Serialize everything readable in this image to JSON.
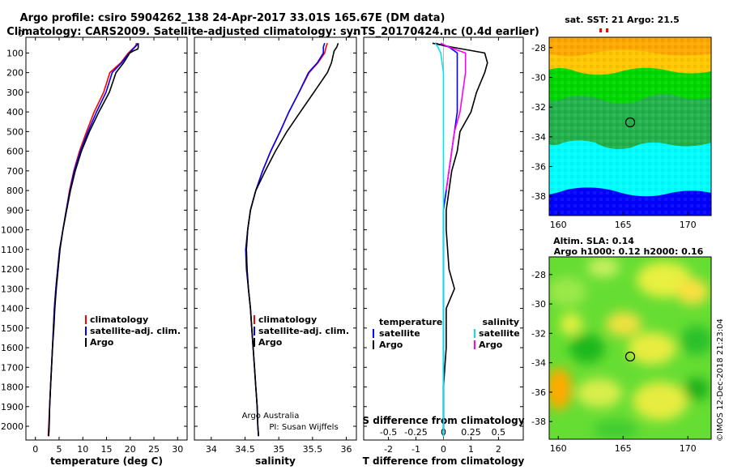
{
  "title_line1": "Argo profile: csiro 5904262_138 24-Apr-2017 33.01S 165.67E (DM data)",
  "title_line2": "Climatology: CARS2009. Satellite-adjusted climatology: synTS_20170424.nc (0.4d earlier)",
  "depth_ticks": [
    "0",
    "100",
    "200",
    "300",
    "400",
    "500",
    "600",
    "700",
    "800",
    "900",
    "1000",
    "1100",
    "1200",
    "1300",
    "1400",
    "1500",
    "1600",
    "1700",
    "1800",
    "1900",
    "2000"
  ],
  "colors": {
    "climatology": "#ff0000",
    "satellite": "#0000ff",
    "argo": "#000000",
    "cyan": "#00e6e6",
    "magenta": "#ff00ff"
  },
  "panels": [
    {
      "id": "temperature",
      "xlabel": "temperature (deg C)",
      "xticks": [
        "0",
        "5",
        "10",
        "15",
        "20",
        "25",
        "30"
      ],
      "xlim": [
        -2,
        32
      ],
      "legend": [
        "climatology",
        "satellite-adj. clim.",
        "Argo"
      ],
      "series": [
        {
          "name": "climatology",
          "color": "#ff0000",
          "points": [
            [
              21.3,
              50
            ],
            [
              21.2,
              60
            ],
            [
              20.9,
              70
            ],
            [
              19.6,
              100
            ],
            [
              18.0,
              150
            ],
            [
              15.7,
              200
            ],
            [
              14.4,
              300
            ],
            [
              12.4,
              400
            ],
            [
              10.8,
              500
            ],
            [
              9.3,
              600
            ],
            [
              8.1,
              700
            ],
            [
              7.2,
              800
            ],
            [
              6.5,
              900
            ],
            [
              5.8,
              1000
            ],
            [
              5.1,
              1100
            ],
            [
              4.7,
              1200
            ],
            [
              4.3,
              1300
            ],
            [
              4.0,
              1400
            ],
            [
              3.8,
              1500
            ],
            [
              3.6,
              1600
            ],
            [
              3.4,
              1700
            ],
            [
              3.2,
              1800
            ],
            [
              3.0,
              1900
            ],
            [
              2.8,
              2000
            ],
            [
              2.7,
              2050
            ]
          ]
        },
        {
          "name": "satellite-adj. clim.",
          "color": "#0000ff",
          "points": [
            [
              21.5,
              50
            ],
            [
              21.4,
              60
            ],
            [
              21.0,
              70
            ],
            [
              19.8,
              100
            ],
            [
              18.2,
              150
            ],
            [
              16.2,
              200
            ],
            [
              14.9,
              300
            ],
            [
              12.9,
              400
            ],
            [
              11.1,
              500
            ],
            [
              9.5,
              600
            ],
            [
              8.2,
              700
            ],
            [
              7.3,
              800
            ],
            [
              6.5,
              900
            ],
            [
              5.8,
              1000
            ],
            [
              5.1,
              1100
            ],
            [
              4.7,
              1200
            ],
            [
              4.3,
              1300
            ],
            [
              4.0,
              1400
            ],
            [
              3.8,
              1500
            ],
            [
              3.6,
              1600
            ],
            [
              3.4,
              1700
            ],
            [
              3.2,
              1800
            ],
            [
              3.0,
              1900
            ],
            [
              2.9,
              2000
            ],
            [
              2.8,
              2050
            ]
          ]
        },
        {
          "name": "Argo",
          "color": "#000000",
          "points": [
            [
              21.7,
              50
            ],
            [
              21.7,
              70
            ],
            [
              21.6,
              80
            ],
            [
              20.6,
              90
            ],
            [
              19.9,
              100
            ],
            [
              18.6,
              150
            ],
            [
              17.0,
              200
            ],
            [
              15.6,
              300
            ],
            [
              13.4,
              400
            ],
            [
              11.4,
              500
            ],
            [
              9.7,
              600
            ],
            [
              8.4,
              700
            ],
            [
              7.4,
              800
            ],
            [
              6.6,
              900
            ],
            [
              5.8,
              1000
            ],
            [
              5.2,
              1100
            ],
            [
              4.8,
              1200
            ],
            [
              4.4,
              1300
            ],
            [
              4.1,
              1400
            ],
            [
              3.9,
              1500
            ],
            [
              3.6,
              1600
            ],
            [
              3.4,
              1700
            ],
            [
              3.2,
              1800
            ],
            [
              3.0,
              1900
            ],
            [
              2.9,
              2000
            ],
            [
              2.8,
              2050
            ]
          ]
        }
      ]
    },
    {
      "id": "salinity",
      "xlabel": "salinity",
      "xticks": [
        "34",
        "34.5",
        "35",
        "35.5",
        "36"
      ],
      "xlim": [
        33.75,
        36.15
      ],
      "legend": [
        "climatology",
        "satellite-adj. clim.",
        "Argo"
      ],
      "series": [
        {
          "name": "climatology",
          "color": "#ff0000",
          "points": [
            [
              35.72,
              50
            ],
            [
              35.7,
              70
            ],
            [
              35.68,
              100
            ],
            [
              35.58,
              150
            ],
            [
              35.45,
              200
            ],
            [
              35.3,
              300
            ],
            [
              35.15,
              400
            ],
            [
              35.02,
              500
            ],
            [
              34.88,
              600
            ],
            [
              34.76,
              700
            ],
            [
              34.66,
              800
            ],
            [
              34.58,
              900
            ],
            [
              34.54,
              1000
            ],
            [
              34.52,
              1100
            ],
            [
              34.53,
              1200
            ],
            [
              34.55,
              1300
            ],
            [
              34.58,
              1400
            ],
            [
              34.6,
              1500
            ],
            [
              34.62,
              1600
            ],
            [
              34.64,
              1700
            ],
            [
              34.66,
              1800
            ],
            [
              34.68,
              1900
            ],
            [
              34.69,
              2000
            ],
            [
              34.7,
              2050
            ]
          ]
        },
        {
          "name": "satellite-adj. clim.",
          "color": "#0000ff",
          "points": [
            [
              35.68,
              50
            ],
            [
              35.66,
              70
            ],
            [
              35.66,
              100
            ],
            [
              35.57,
              150
            ],
            [
              35.44,
              200
            ],
            [
              35.3,
              300
            ],
            [
              35.15,
              400
            ],
            [
              35.02,
              500
            ],
            [
              34.88,
              600
            ],
            [
              34.76,
              700
            ],
            [
              34.66,
              800
            ],
            [
              34.58,
              900
            ],
            [
              34.54,
              1000
            ],
            [
              34.51,
              1100
            ],
            [
              34.52,
              1200
            ],
            [
              34.55,
              1300
            ],
            [
              34.58,
              1400
            ],
            [
              34.6,
              1500
            ],
            [
              34.62,
              1600
            ],
            [
              34.64,
              1700
            ],
            [
              34.66,
              1800
            ],
            [
              34.68,
              1900
            ],
            [
              34.69,
              2000
            ],
            [
              34.7,
              2050
            ]
          ]
        },
        {
          "name": "Argo",
          "color": "#000000",
          "points": [
            [
              35.88,
              50
            ],
            [
              35.86,
              70
            ],
            [
              35.82,
              90
            ],
            [
              35.78,
              150
            ],
            [
              35.72,
              200
            ],
            [
              35.52,
              300
            ],
            [
              35.32,
              400
            ],
            [
              35.12,
              500
            ],
            [
              34.95,
              600
            ],
            [
              34.8,
              700
            ],
            [
              34.66,
              800
            ],
            [
              34.58,
              900
            ],
            [
              34.54,
              1000
            ],
            [
              34.52,
              1100
            ],
            [
              34.53,
              1200
            ],
            [
              34.55,
              1300
            ],
            [
              34.58,
              1400
            ],
            [
              34.6,
              1500
            ],
            [
              34.62,
              1600
            ],
            [
              34.64,
              1700
            ],
            [
              34.66,
              1800
            ],
            [
              34.68,
              1900
            ],
            [
              34.69,
              2000
            ],
            [
              34.7,
              2050
            ]
          ]
        }
      ]
    },
    {
      "id": "difference",
      "xlabel": "T difference from climatology",
      "xlabel_top": "S difference from climatology",
      "xticks": [
        "-2",
        "-1",
        "0",
        "1",
        "2"
      ],
      "xlim": [
        -2.9,
        2.9
      ],
      "xticks_top": [
        "-0.5",
        "-0.25",
        "0",
        "0.25",
        "0.5"
      ],
      "legend_left_title": "temperature",
      "legend_left": [
        "satellite",
        "Argo"
      ],
      "legend_right_title": "salinity",
      "legend_right": [
        "satellite",
        "Argo"
      ],
      "series": [
        {
          "name": "T satellite",
          "color": "#0000ff",
          "points": [
            [
              -0.3,
              50
            ],
            [
              0.2,
              70
            ],
            [
              0.5,
              100
            ],
            [
              0.5,
              150
            ],
            [
              0.5,
              200
            ],
            [
              0.5,
              300
            ],
            [
              0.5,
              400
            ],
            [
              0.4,
              500
            ],
            [
              0.3,
              600
            ],
            [
              0.2,
              700
            ],
            [
              0.1,
              800
            ],
            [
              0.0,
              900
            ],
            [
              0.0,
              1000
            ],
            [
              0.0,
              1200
            ],
            [
              0.0,
              1400
            ],
            [
              0.0,
              1600
            ],
            [
              0.0,
              1800
            ],
            [
              0.0,
              2000
            ],
            [
              0.0,
              2050
            ]
          ]
        },
        {
          "name": "T Argo",
          "color": "#000000",
          "points": [
            [
              -0.4,
              50
            ],
            [
              0.3,
              70
            ],
            [
              1.5,
              100
            ],
            [
              1.6,
              150
            ],
            [
              1.5,
              200
            ],
            [
              1.2,
              300
            ],
            [
              1.0,
              400
            ],
            [
              0.6,
              500
            ],
            [
              0.5,
              600
            ],
            [
              0.3,
              700
            ],
            [
              0.2,
              800
            ],
            [
              0.1,
              900
            ],
            [
              0.1,
              1000
            ],
            [
              0.2,
              1200
            ],
            [
              0.4,
              1300
            ],
            [
              0.1,
              1400
            ],
            [
              0.1,
              1600
            ],
            [
              0.0,
              1800
            ],
            [
              0.0,
              2000
            ],
            [
              0.0,
              2050
            ]
          ]
        },
        {
          "name": "S satellite",
          "color": "#00e6e6",
          "points": [
            [
              -0.3,
              50
            ],
            [
              -0.2,
              70
            ],
            [
              -0.1,
              100
            ],
            [
              0.0,
              200
            ],
            [
              0.0,
              400
            ],
            [
              0.0,
              600
            ],
            [
              0.0,
              800
            ],
            [
              0.0,
              1000
            ],
            [
              0.0,
              1100
            ],
            [
              0.0,
              1200
            ],
            [
              0.0,
              1400
            ],
            [
              0.0,
              1600
            ],
            [
              0.0,
              1800
            ],
            [
              0.0,
              2000
            ],
            [
              0.0,
              2050
            ]
          ]
        },
        {
          "name": "S Argo",
          "color": "#ff00ff",
          "points": [
            [
              -0.1,
              50
            ],
            [
              0.2,
              70
            ],
            [
              0.6,
              90
            ],
            [
              0.8,
              100
            ],
            [
              0.8,
              150
            ],
            [
              0.8,
              200
            ],
            [
              0.7,
              300
            ],
            [
              0.6,
              400
            ],
            [
              0.4,
              500
            ],
            [
              0.3,
              600
            ],
            [
              0.2,
              700
            ],
            [
              0.1,
              800
            ]
          ]
        }
      ]
    }
  ],
  "credits_line1": "Argo Australia",
  "credits_line2": "PI: Susan Wijffels",
  "map_top_title": "sat. SST: 21 Argo: 21.5",
  "map_bottom_title1": "Altim. SLA: 0.14",
  "map_bottom_title2": "Argo h1000: 0.12 h2000: 0.16",
  "map_lat_ticks": [
    "-28",
    "-30",
    "-32",
    "-34",
    "-36",
    "-38"
  ],
  "map_lon_ticks": [
    "160",
    "165",
    "170"
  ],
  "watermark": "©IMOS 12-Dec-2018 21:23:04"
}
